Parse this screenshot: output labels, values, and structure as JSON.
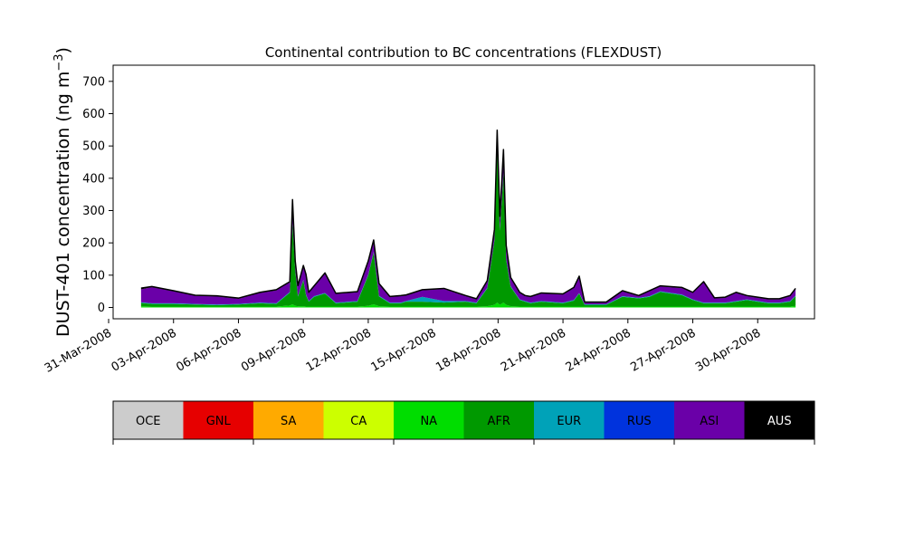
{
  "chart_data": {
    "type": "area",
    "title": "Continental contribution to BC concentrations (FLEXDUST)",
    "ylabel": "DUST-401 concentration (ng m",
    "ylabel_unit_sup": "−3",
    "ylabel_close": ")",
    "xlabel": "",
    "ylim": [
      -35,
      750
    ],
    "xlim": [
      "2008-03-31T05:00",
      "2008-05-02T15:00"
    ],
    "x_ticks": [
      "31-Mar-2008",
      "03-Apr-2008",
      "06-Apr-2008",
      "09-Apr-2008",
      "12-Apr-2008",
      "15-Apr-2008",
      "18-Apr-2008",
      "21-Apr-2008",
      "24-Apr-2008",
      "27-Apr-2008",
      "30-Apr-2008"
    ],
    "x_tick_dates": [
      "2008-03-31",
      "2008-04-03",
      "2008-04-06",
      "2008-04-09",
      "2008-04-12",
      "2008-04-15",
      "2008-04-18",
      "2008-04-21",
      "2008-04-24",
      "2008-04-27",
      "2008-04-30"
    ],
    "y_ticks": [
      0,
      100,
      200,
      300,
      400,
      500,
      600,
      700
    ],
    "stacking_order": [
      "NA",
      "AFR",
      "EUR",
      "ASI",
      "AUS"
    ],
    "x": [
      "2008-04-01T12:00",
      "2008-04-02T00:00",
      "2008-04-03T00:00",
      "2008-04-04T00:00",
      "2008-04-05T00:00",
      "2008-04-06T00:00",
      "2008-04-07T00:00",
      "2008-04-07T18:00",
      "2008-04-08T09:00",
      "2008-04-08T12:00",
      "2008-04-08T15:00",
      "2008-04-08T18:00",
      "2008-04-09T00:00",
      "2008-04-09T03:00",
      "2008-04-09T06:00",
      "2008-04-09T12:00",
      "2008-04-10T00:00",
      "2008-04-10T12:00",
      "2008-04-11T12:00",
      "2008-04-12T00:00",
      "2008-04-12T06:00",
      "2008-04-12T12:00",
      "2008-04-13T00:00",
      "2008-04-13T12:00",
      "2008-04-13T18:00",
      "2008-04-14T12:00",
      "2008-04-15T12:00",
      "2008-04-16T12:00",
      "2008-04-17T00:00",
      "2008-04-17T12:00",
      "2008-04-17T20:00",
      "2008-04-17T23:00",
      "2008-04-18T02:00",
      "2008-04-18T06:00",
      "2008-04-18T09:00",
      "2008-04-18T14:00",
      "2008-04-19T00:00",
      "2008-04-19T06:00",
      "2008-04-19T12:00",
      "2008-04-20T00:00",
      "2008-04-21T00:00",
      "2008-04-21T12:00",
      "2008-04-21T18:00",
      "2008-04-22T00:00",
      "2008-04-23T00:00",
      "2008-04-23T18:00",
      "2008-04-24T12:00",
      "2008-04-25T00:00",
      "2008-04-25T12:00",
      "2008-04-26T12:00",
      "2008-04-27T00:00",
      "2008-04-27T12:00",
      "2008-04-28T00:00",
      "2008-04-28T12:00",
      "2008-04-29T00:00",
      "2008-04-29T12:00",
      "2008-04-30T00:00",
      "2008-04-30T12:00",
      "2008-05-01T00:00",
      "2008-05-01T12:00",
      "2008-05-01T18:00"
    ],
    "series": [
      {
        "name": "NA",
        "color": "#00dd00",
        "values": [
          4,
          3,
          3,
          3,
          3,
          3,
          3,
          3,
          6,
          10,
          5,
          4,
          4,
          3,
          3,
          3,
          3,
          3,
          3,
          5,
          10,
          4,
          3,
          3,
          3,
          3,
          3,
          3,
          3,
          4,
          8,
          15,
          8,
          15,
          8,
          4,
          3,
          3,
          3,
          3,
          3,
          3,
          3,
          3,
          3,
          3,
          3,
          3,
          3,
          3,
          3,
          3,
          3,
          3,
          3,
          3,
          3,
          3,
          3,
          3,
          5
        ]
      },
      {
        "name": "AFR",
        "color": "#009900",
        "values": [
          10,
          8,
          8,
          6,
          4,
          6,
          10,
          8,
          40,
          250,
          110,
          30,
          80,
          35,
          15,
          30,
          40,
          10,
          15,
          95,
          160,
          30,
          10,
          10,
          15,
          15,
          12,
          15,
          10,
          55,
          200,
          480,
          230,
          400,
          140,
          60,
          20,
          15,
          10,
          15,
          10,
          18,
          40,
          5,
          5,
          30,
          25,
          30,
          45,
          35,
          20,
          10,
          10,
          10,
          15,
          20,
          15,
          10,
          10,
          15,
          30
        ]
      },
      {
        "name": "EUR",
        "color": "#00a2b8",
        "values": [
          2,
          2,
          2,
          2,
          2,
          2,
          2,
          2,
          2,
          2,
          2,
          2,
          2,
          2,
          2,
          2,
          2,
          2,
          2,
          2,
          2,
          2,
          2,
          2,
          2,
          15,
          5,
          2,
          2,
          2,
          2,
          2,
          2,
          2,
          2,
          2,
          2,
          2,
          2,
          2,
          2,
          2,
          2,
          2,
          2,
          2,
          2,
          2,
          2,
          2,
          2,
          2,
          2,
          2,
          2,
          2,
          2,
          2,
          2,
          2,
          2
        ]
      },
      {
        "name": "ASI",
        "color": "#6a00a8",
        "values": [
          40,
          50,
          37,
          25,
          25,
          16,
          30,
          40,
          30,
          70,
          25,
          30,
          40,
          60,
          25,
          30,
          60,
          27,
          27,
          40,
          35,
          36,
          17,
          20,
          17,
          20,
          37,
          15,
          10,
          20,
          30,
          50,
          40,
          70,
          40,
          25,
          20,
          15,
          17,
          23,
          25,
          37,
          50,
          5,
          5,
          15,
          5,
          15,
          15,
          20,
          20,
          63,
          13,
          15,
          25,
          10,
          10,
          10,
          10,
          15,
          20
        ]
      },
      {
        "name": "AUS",
        "color": "#000000",
        "values": [
          4,
          2,
          2,
          2,
          2,
          2,
          2,
          2,
          2,
          2,
          2,
          2,
          4,
          2,
          2,
          2,
          2,
          2,
          2,
          2,
          2,
          2,
          2,
          2,
          2,
          2,
          2,
          2,
          2,
          2,
          2,
          2,
          2,
          2,
          2,
          2,
          2,
          2,
          2,
          2,
          2,
          2,
          2,
          2,
          2,
          2,
          2,
          2,
          2,
          2,
          2,
          2,
          2,
          2,
          2,
          2,
          2,
          2,
          2,
          2,
          2
        ]
      }
    ]
  },
  "legend": {
    "items": [
      {
        "label": "OCE",
        "color": "#cccccc",
        "text_color": "#000000"
      },
      {
        "label": "GNL",
        "color": "#e60000",
        "text_color": "#000000"
      },
      {
        "label": "SA",
        "color": "#ffaa00",
        "text_color": "#000000"
      },
      {
        "label": "CA",
        "color": "#ccff00",
        "text_color": "#000000"
      },
      {
        "label": "NA",
        "color": "#00dd00",
        "text_color": "#000000"
      },
      {
        "label": "AFR",
        "color": "#009900",
        "text_color": "#000000"
      },
      {
        "label": "EUR",
        "color": "#00a2b8",
        "text_color": "#000000"
      },
      {
        "label": "RUS",
        "color": "#0033dd",
        "text_color": "#000000"
      },
      {
        "label": "ASI",
        "color": "#6a00a8",
        "text_color": "#000000"
      },
      {
        "label": "AUS",
        "color": "#000000",
        "text_color": "#ffffff"
      }
    ]
  }
}
